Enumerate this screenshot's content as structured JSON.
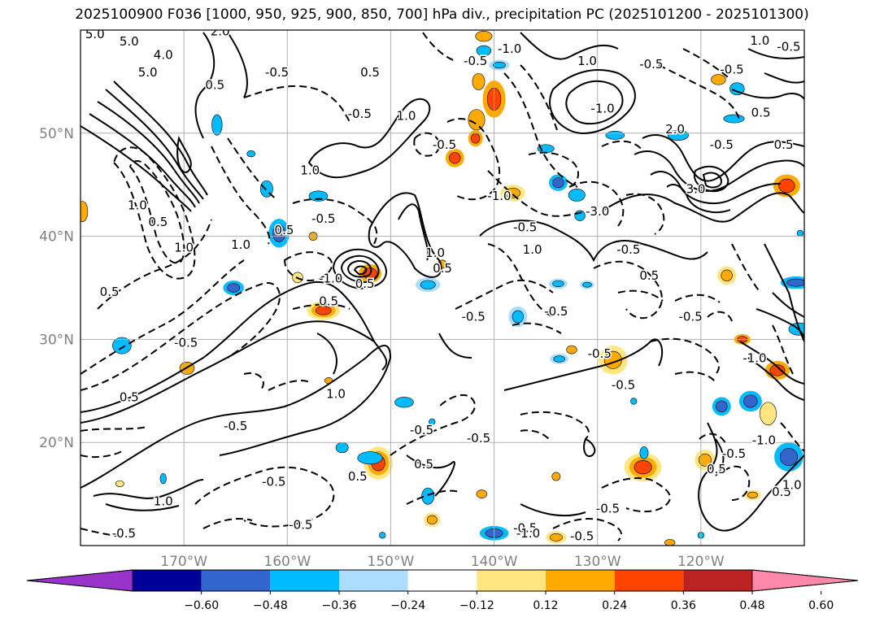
{
  "title": "2025100900 F036 [1000, 950, 925, 900, 850, 700] hPa div., precipitation PC (2025101200 - 2025101300)",
  "map": {
    "lat_range": [
      10,
      60
    ],
    "lon_range": [
      -180,
      -110
    ],
    "lat_ticks": [
      {
        "value": 20,
        "label": "20°N"
      },
      {
        "value": 30,
        "label": "30°N"
      },
      {
        "value": 40,
        "label": "40°N"
      },
      {
        "value": 50,
        "label": "50°N"
      }
    ],
    "lon_ticks": [
      {
        "value": -170,
        "label": "170°W"
      },
      {
        "value": -160,
        "label": "160°W"
      },
      {
        "value": -150,
        "label": "150°W"
      },
      {
        "value": -140,
        "label": "140°W"
      },
      {
        "value": -130,
        "label": "130°W"
      },
      {
        "value": -120,
        "label": "120°W"
      }
    ],
    "grid": true
  },
  "colorbar": {
    "ticks": [
      "−0.60",
      "−0.48",
      "−0.36",
      "−0.24",
      "−0.12",
      "0.12",
      "0.24",
      "0.36",
      "0.48",
      "0.60"
    ],
    "colors": [
      "#9933cc",
      "#000099",
      "#3366cc",
      "#00bbff",
      "#aaddff",
      "#ffffff",
      "#ffe680",
      "#ffaa00",
      "#ff4400",
      "#bb2222",
      "#ff88aa"
    ]
  },
  "contour_labels": [
    {
      "text": "5.0",
      "lon": -178.6,
      "lat": 59.2
    },
    {
      "text": "5.0",
      "lon": -175.3,
      "lat": 58.5
    },
    {
      "text": "5.0",
      "lon": -173.5,
      "lat": 55.5
    },
    {
      "text": "4.0",
      "lon": -172.0,
      "lat": 57.2
    },
    {
      "text": "2.0",
      "lon": -166.5,
      "lat": 59.5
    },
    {
      "text": "0.5",
      "lon": -167.0,
      "lat": 54.3
    },
    {
      "text": "-0.5",
      "lon": -161.0,
      "lat": 55.5
    },
    {
      "text": "0.5",
      "lon": -152.0,
      "lat": 55.5
    },
    {
      "text": "-0.5",
      "lon": -153.0,
      "lat": 51.5
    },
    {
      "text": "1.0",
      "lon": -148.5,
      "lat": 51.3
    },
    {
      "text": "-0.5",
      "lon": -141.8,
      "lat": 56.6
    },
    {
      "text": "-1.0",
      "lon": -138.5,
      "lat": 57.8
    },
    {
      "text": "1.0",
      "lon": -131.0,
      "lat": 56.6
    },
    {
      "text": "-0.5",
      "lon": -124.8,
      "lat": 56.3
    },
    {
      "text": "1.0",
      "lon": -114.3,
      "lat": 58.6
    },
    {
      "text": "-0.5",
      "lon": -111.5,
      "lat": 58.0
    },
    {
      "text": "-0.5",
      "lon": -117.0,
      "lat": 55.8
    },
    {
      "text": "0.5",
      "lon": -114.2,
      "lat": 51.6
    },
    {
      "text": "0.5",
      "lon": -112.0,
      "lat": 48.5
    },
    {
      "text": "-0.5",
      "lon": -118.0,
      "lat": 48.5
    },
    {
      "text": "2.0",
      "lon": -122.5,
      "lat": 50.0
    },
    {
      "text": "-1.0",
      "lon": -129.5,
      "lat": 52.0
    },
    {
      "text": "1.0",
      "lon": -157.8,
      "lat": 46.0
    },
    {
      "text": "-0.5",
      "lon": -144.8,
      "lat": 48.5
    },
    {
      "text": "-1.0",
      "lon": -139.5,
      "lat": 43.5
    },
    {
      "text": "-3.0",
      "lon": -130.0,
      "lat": 42.0
    },
    {
      "text": "3.0",
      "lon": -120.5,
      "lat": 44.2
    },
    {
      "text": "-0.5",
      "lon": -156.5,
      "lat": 41.3
    },
    {
      "text": "1.0",
      "lon": -174.5,
      "lat": 42.6
    },
    {
      "text": "0.5",
      "lon": -172.5,
      "lat": 41.0
    },
    {
      "text": "1.0",
      "lon": -170.0,
      "lat": 38.5
    },
    {
      "text": "1.0",
      "lon": -164.5,
      "lat": 38.8
    },
    {
      "text": "0.5",
      "lon": -160.3,
      "lat": 40.2
    },
    {
      "text": "-0.5",
      "lon": -137.0,
      "lat": 40.5
    },
    {
      "text": "1.0",
      "lon": -145.7,
      "lat": 38.0
    },
    {
      "text": "0.5",
      "lon": -145.0,
      "lat": 36.5
    },
    {
      "text": "1.0",
      "lon": -136.3,
      "lat": 38.3
    },
    {
      "text": "-0.5",
      "lon": -127.0,
      "lat": 38.3
    },
    {
      "text": "0.5",
      "lon": -125.0,
      "lat": 35.8
    },
    {
      "text": "-1.0",
      "lon": -155.8,
      "lat": 35.5
    },
    {
      "text": "0.5",
      "lon": -152.5,
      "lat": 35.0
    },
    {
      "text": "0.5",
      "lon": -177.2,
      "lat": 34.2
    },
    {
      "text": "0.5",
      "lon": -156.0,
      "lat": 33.3
    },
    {
      "text": "-0.5",
      "lon": -142.0,
      "lat": 31.8
    },
    {
      "text": "-0.5",
      "lon": -134.0,
      "lat": 32.3
    },
    {
      "text": "-0.5",
      "lon": -121.0,
      "lat": 31.8
    },
    {
      "text": "-0.5",
      "lon": -169.8,
      "lat": 29.3
    },
    {
      "text": "-0.5",
      "lon": -129.8,
      "lat": 28.2
    },
    {
      "text": "-1.0",
      "lon": -114.8,
      "lat": 27.8
    },
    {
      "text": "0.5",
      "lon": -175.3,
      "lat": 24.0
    },
    {
      "text": "1.0",
      "lon": -155.3,
      "lat": 24.3
    },
    {
      "text": "-0.5",
      "lon": -127.5,
      "lat": 25.2
    },
    {
      "text": "-0.5",
      "lon": -165.0,
      "lat": 21.2
    },
    {
      "text": "-0.5",
      "lon": -147.0,
      "lat": 20.8
    },
    {
      "text": "-0.5",
      "lon": -141.5,
      "lat": 20.0
    },
    {
      "text": "-1.0",
      "lon": -113.9,
      "lat": 19.8
    },
    {
      "text": "-0.5",
      "lon": -116.8,
      "lat": 18.5
    },
    {
      "text": "0.5",
      "lon": -118.5,
      "lat": 17.0
    },
    {
      "text": "0.5",
      "lon": -146.8,
      "lat": 17.5
    },
    {
      "text": "0.5",
      "lon": -153.2,
      "lat": 16.3
    },
    {
      "text": "-0.5",
      "lon": -161.3,
      "lat": 15.8
    },
    {
      "text": "1.0",
      "lon": -172.0,
      "lat": 13.9
    },
    {
      "text": "0.5",
      "lon": -112.2,
      "lat": 14.8
    },
    {
      "text": "1.0",
      "lon": -111.2,
      "lat": 15.5
    },
    {
      "text": "-0.5",
      "lon": -129.0,
      "lat": 13.2
    },
    {
      "text": "-0.5",
      "lon": -158.7,
      "lat": 11.6
    },
    {
      "text": "-0.5",
      "lon": -175.8,
      "lat": 10.8
    },
    {
      "text": "-0.5",
      "lon": -137.0,
      "lat": 11.3
    },
    {
      "text": "-1.0",
      "lon": -136.7,
      "lat": 10.8
    },
    {
      "text": "-0.5",
      "lon": -131.5,
      "lat": 10.5
    }
  ],
  "precip_blobs": [
    {
      "lon": -140.0,
      "lat": 53.3,
      "rx": 1.1,
      "ry": 1.8,
      "colors": [
        "#ffaa00",
        "#ff4400"
      ]
    },
    {
      "lon": -141.7,
      "lat": 51.3,
      "rx": 0.8,
      "ry": 1.0,
      "colors": [
        "#ffaa00"
      ]
    },
    {
      "lon": -143.8,
      "lat": 47.6,
      "rx": 0.9,
      "ry": 0.9,
      "colors": [
        "#ffaa00",
        "#ff4400"
      ]
    },
    {
      "lon": -138.2,
      "lat": 44.2,
      "rx": 1.2,
      "ry": 0.8,
      "colors": [
        "#ffe680",
        "#ffaa00"
      ]
    },
    {
      "lon": -152.0,
      "lat": 36.4,
      "rx": 1.1,
      "ry": 0.9,
      "colors": [
        "#ffaa00",
        "#ff4400"
      ]
    },
    {
      "lon": -156.5,
      "lat": 32.8,
      "rx": 1.6,
      "ry": 0.9,
      "colors": [
        "#ffe680",
        "#ffaa00",
        "#ff4400"
      ]
    },
    {
      "lon": -151.2,
      "lat": 18.0,
      "rx": 1.4,
      "ry": 1.6,
      "colors": [
        "#ffe680",
        "#ffaa00",
        "#ff4400"
      ]
    },
    {
      "lon": -125.6,
      "lat": 17.6,
      "rx": 1.8,
      "ry": 1.4,
      "colors": [
        "#ffe680",
        "#ffaa00",
        "#ff4400"
      ]
    },
    {
      "lon": -111.7,
      "lat": 44.9,
      "rx": 1.3,
      "ry": 1.1,
      "colors": [
        "#ffaa00",
        "#ff4400"
      ]
    },
    {
      "lon": -112.6,
      "lat": 27.0,
      "rx": 1.2,
      "ry": 0.9,
      "colors": [
        "#ffaa00",
        "#ff4400"
      ]
    },
    {
      "lon": -128.5,
      "lat": 28.0,
      "rx": 1.4,
      "ry": 1.4,
      "colors": [
        "#ffe680",
        "#ffaa00"
      ]
    },
    {
      "lon": -119.6,
      "lat": 18.3,
      "rx": 1.0,
      "ry": 1.0,
      "colors": [
        "#ffe680",
        "#ffaa00"
      ]
    },
    {
      "lon": -117.5,
      "lat": 36.2,
      "rx": 0.9,
      "ry": 0.9,
      "colors": [
        "#ffe680",
        "#ffaa00"
      ]
    },
    {
      "lon": -113.5,
      "lat": 22.8,
      "rx": 0.8,
      "ry": 1.1,
      "colors": [
        "#ffe680"
      ]
    },
    {
      "lon": -134.0,
      "lat": 10.8,
      "rx": 1.0,
      "ry": 0.6,
      "colors": [
        "#ffe680",
        "#ffaa00"
      ]
    },
    {
      "lon": -146.0,
      "lat": 12.5,
      "rx": 0.8,
      "ry": 0.7,
      "colors": [
        "#ffe680",
        "#ffaa00"
      ]
    },
    {
      "lon": -169.7,
      "lat": 27.2,
      "rx": 0.7,
      "ry": 0.6,
      "colors": [
        "#ffaa00"
      ]
    },
    {
      "lon": -179.8,
      "lat": 42.4,
      "rx": 0.5,
      "ry": 1.0,
      "colors": [
        "#ffaa00"
      ]
    },
    {
      "lon": -115.0,
      "lat": 14.9,
      "rx": 0.8,
      "ry": 0.5,
      "colors": [
        "#ffe680",
        "#ffaa00"
      ]
    },
    {
      "lon": -159.0,
      "lat": 36.0,
      "rx": 0.5,
      "ry": 0.5,
      "colors": [
        "#ffe680"
      ]
    },
    {
      "lon": -141.5,
      "lat": 55.0,
      "rx": 0.6,
      "ry": 0.8,
      "colors": [
        "#ffaa00"
      ]
    },
    {
      "lon": -132.5,
      "lat": 29.0,
      "rx": 0.5,
      "ry": 0.4,
      "colors": [
        "#ffaa00"
      ]
    },
    {
      "lon": -141.8,
      "lat": 49.5,
      "rx": 0.7,
      "ry": 0.8,
      "colors": [
        "#ffaa00",
        "#ff4400"
      ]
    },
    {
      "lon": -118.3,
      "lat": 55.2,
      "rx": 0.7,
      "ry": 0.5,
      "colors": [
        "#ffaa00"
      ]
    },
    {
      "lon": -141.0,
      "lat": 59.4,
      "rx": 0.8,
      "ry": 0.5,
      "colors": [
        "#ffaa00"
      ]
    },
    {
      "lon": -134.0,
      "lat": 16.7,
      "rx": 0.4,
      "ry": 0.4,
      "colors": [
        "#ffaa00"
      ]
    },
    {
      "lon": -157.5,
      "lat": 40.0,
      "rx": 0.4,
      "ry": 0.4,
      "colors": [
        "#ffaa00"
      ]
    },
    {
      "lon": -141.2,
      "lat": 15.0,
      "rx": 0.5,
      "ry": 0.4,
      "colors": [
        "#ffaa00"
      ]
    },
    {
      "lon": -123.0,
      "lat": 10.3,
      "rx": 0.5,
      "ry": 0.3,
      "colors": [
        "#ffaa00"
      ]
    },
    {
      "lon": -145.0,
      "lat": 37.3,
      "rx": 0.4,
      "ry": 0.4,
      "colors": [
        "#ffaa00"
      ]
    },
    {
      "lon": -156.0,
      "lat": 26.0,
      "rx": 0.4,
      "ry": 0.3,
      "colors": [
        "#ffaa00"
      ]
    },
    {
      "lon": -176.2,
      "lat": 16.0,
      "rx": 0.4,
      "ry": 0.3,
      "colors": [
        "#ffe680"
      ]
    },
    {
      "lon": -116.0,
      "lat": 30.0,
      "rx": 0.8,
      "ry": 0.5,
      "colors": [
        "#ffaa00",
        "#ff4400"
      ]
    }
  ],
  "neg_precip_blobs": [
    {
      "lon": -139.5,
      "lat": 56.6,
      "rx": 1.0,
      "ry": 0.5,
      "colors": [
        "#aaddff",
        "#00bbff"
      ]
    },
    {
      "lon": -133.8,
      "lat": 45.2,
      "rx": 0.9,
      "ry": 0.8,
      "colors": [
        "#00bbff",
        "#3366cc"
      ]
    },
    {
      "lon": -132.0,
      "lat": 44.0,
      "rx": 0.8,
      "ry": 0.6,
      "colors": [
        "#00bbff"
      ]
    },
    {
      "lon": -160.8,
      "lat": 40.3,
      "rx": 1.0,
      "ry": 1.4,
      "colors": [
        "#00bbff",
        "#3366cc"
      ]
    },
    {
      "lon": -162.0,
      "lat": 44.6,
      "rx": 0.6,
      "ry": 0.8,
      "colors": [
        "#00bbff"
      ]
    },
    {
      "lon": -165.2,
      "lat": 35.0,
      "rx": 1.0,
      "ry": 0.7,
      "colors": [
        "#00bbff",
        "#3366cc"
      ]
    },
    {
      "lon": -176.0,
      "lat": 29.4,
      "rx": 0.9,
      "ry": 0.8,
      "colors": [
        "#00bbff"
      ]
    },
    {
      "lon": -157.0,
      "lat": 43.9,
      "rx": 0.9,
      "ry": 0.5,
      "colors": [
        "#00bbff"
      ]
    },
    {
      "lon": -146.4,
      "lat": 35.3,
      "rx": 1.2,
      "ry": 0.7,
      "colors": [
        "#aaddff",
        "#00bbff"
      ]
    },
    {
      "lon": -137.7,
      "lat": 32.2,
      "rx": 0.9,
      "ry": 1.0,
      "colors": [
        "#aaddff",
        "#00bbff"
      ]
    },
    {
      "lon": -133.8,
      "lat": 35.4,
      "rx": 0.9,
      "ry": 0.5,
      "colors": [
        "#aaddff",
        "#00bbff"
      ]
    },
    {
      "lon": -133.7,
      "lat": 28.1,
      "rx": 0.9,
      "ry": 0.5,
      "colors": [
        "#aaddff",
        "#00bbff"
      ]
    },
    {
      "lon": -118.0,
      "lat": 23.5,
      "rx": 0.9,
      "ry": 0.9,
      "colors": [
        "#00bbff",
        "#3366cc"
      ]
    },
    {
      "lon": -115.2,
      "lat": 24.0,
      "rx": 1.1,
      "ry": 1.0,
      "colors": [
        "#00bbff",
        "#3366cc"
      ]
    },
    {
      "lon": -111.5,
      "lat": 18.6,
      "rx": 1.4,
      "ry": 1.4,
      "colors": [
        "#00bbff",
        "#3366cc"
      ]
    },
    {
      "lon": -110.8,
      "lat": 35.5,
      "rx": 1.5,
      "ry": 0.6,
      "colors": [
        "#00bbff",
        "#3366cc"
      ]
    },
    {
      "lon": -110.5,
      "lat": 31.0,
      "rx": 1.0,
      "ry": 0.6,
      "colors": [
        "#00bbff"
      ]
    },
    {
      "lon": -140.0,
      "lat": 11.2,
      "rx": 1.4,
      "ry": 0.7,
      "colors": [
        "#00bbff",
        "#3366cc"
      ]
    },
    {
      "lon": -152.0,
      "lat": 18.5,
      "rx": 1.2,
      "ry": 0.6,
      "colors": [
        "#00bbff"
      ]
    },
    {
      "lon": -148.7,
      "lat": 23.9,
      "rx": 0.9,
      "ry": 0.5,
      "colors": [
        "#00bbff"
      ]
    },
    {
      "lon": -154.7,
      "lat": 19.5,
      "rx": 0.6,
      "ry": 0.5,
      "colors": [
        "#00bbff"
      ]
    },
    {
      "lon": -146.4,
      "lat": 14.8,
      "rx": 0.6,
      "ry": 0.8,
      "colors": [
        "#00bbff"
      ]
    },
    {
      "lon": -122.2,
      "lat": 49.8,
      "rx": 1.0,
      "ry": 0.5,
      "colors": [
        "#00bbff"
      ]
    },
    {
      "lon": -116.8,
      "lat": 51.4,
      "rx": 1.0,
      "ry": 0.4,
      "colors": [
        "#00bbff"
      ]
    },
    {
      "lon": -116.5,
      "lat": 54.3,
      "rx": 0.7,
      "ry": 0.6,
      "colors": [
        "#00bbff"
      ]
    },
    {
      "lon": -166.8,
      "lat": 50.8,
      "rx": 0.5,
      "ry": 1.0,
      "colors": [
        "#00bbff"
      ]
    },
    {
      "lon": -141.0,
      "lat": 58.0,
      "rx": 0.7,
      "ry": 0.5,
      "colors": [
        "#00bbff"
      ]
    },
    {
      "lon": -135.0,
      "lat": 48.5,
      "rx": 0.8,
      "ry": 0.4,
      "colors": [
        "#00bbff"
      ]
    },
    {
      "lon": -131.7,
      "lat": 42.0,
      "rx": 0.5,
      "ry": 0.5,
      "colors": [
        "#00bbff"
      ]
    },
    {
      "lon": -128.3,
      "lat": 49.8,
      "rx": 0.9,
      "ry": 0.4,
      "colors": [
        "#00bbff"
      ]
    },
    {
      "lon": -131.0,
      "lat": 35.3,
      "rx": 0.7,
      "ry": 0.4,
      "colors": [
        "#aaddff",
        "#00bbff"
      ]
    },
    {
      "lon": -125.5,
      "lat": 19.0,
      "rx": 0.4,
      "ry": 0.6,
      "colors": [
        "#00bbff"
      ]
    },
    {
      "lon": -126.5,
      "lat": 24.0,
      "rx": 0.3,
      "ry": 0.3,
      "colors": [
        "#00bbff"
      ]
    },
    {
      "lon": -172.0,
      "lat": 16.5,
      "rx": 0.3,
      "ry": 0.5,
      "colors": [
        "#00bbff"
      ]
    },
    {
      "lon": -150.8,
      "lat": 11.0,
      "rx": 0.3,
      "ry": 0.3,
      "colors": [
        "#00bbff"
      ]
    },
    {
      "lon": -120.0,
      "lat": 11.0,
      "rx": 0.3,
      "ry": 0.3,
      "colors": [
        "#00bbff"
      ]
    },
    {
      "lon": -163.5,
      "lat": 48.0,
      "rx": 0.4,
      "ry": 0.3,
      "colors": [
        "#00bbff"
      ]
    },
    {
      "lon": -146.0,
      "lat": 22.0,
      "rx": 0.3,
      "ry": 0.3,
      "colors": [
        "#00bbff"
      ]
    },
    {
      "lon": -110.4,
      "lat": 40.3,
      "rx": 0.3,
      "ry": 0.3,
      "colors": [
        "#00bbff"
      ]
    }
  ]
}
